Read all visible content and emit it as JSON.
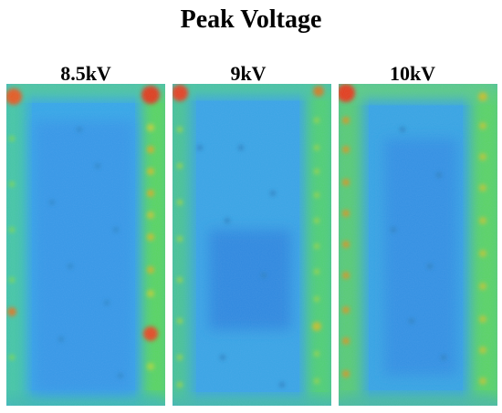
{
  "figure": {
    "title": "Peak Voltage",
    "panels": [
      {
        "label": "8.5kV"
      },
      {
        "label": "9kV"
      },
      {
        "label": "10kV"
      }
    ]
  }
}
